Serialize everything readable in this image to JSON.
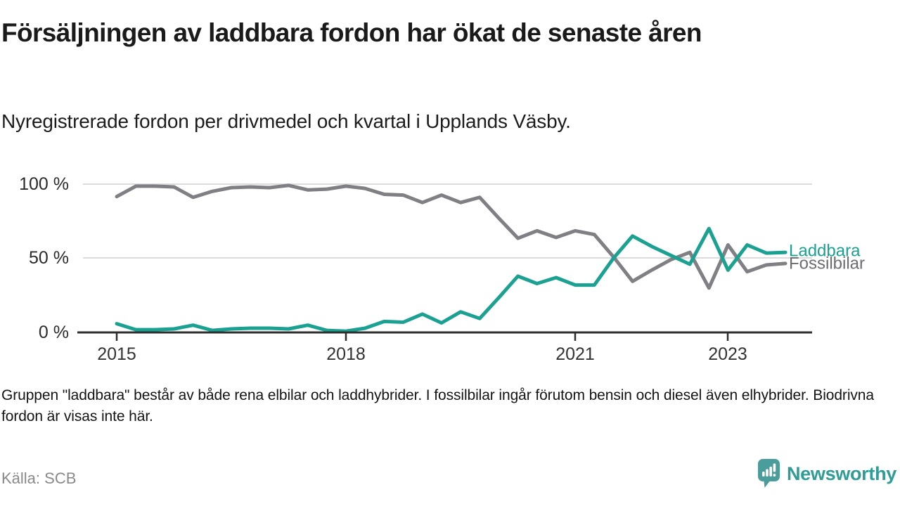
{
  "header": {
    "title": "Försäljningen av laddbara fordon har ökat de senaste åren",
    "subtitle": "Nyregistrerade fordon per drivmedel och kvartal i Upplands Väsby."
  },
  "footer": {
    "footnote": "Gruppen \"laddbara\" består av både rena elbilar och laddhybrider. I fossilbilar ingår förutom bensin och diesel även elhybrider. Biodrivna fordon är visas inte här.",
    "source": "Källa: SCB"
  },
  "branding": {
    "logo_text": "Newsworthy",
    "logo_color": "#2f9c96",
    "logo_bubble_color": "#4a9d9b"
  },
  "chart_data": {
    "type": "line",
    "title": "Försäljningen av laddbara fordon har ökat de senaste åren",
    "subtitle": "Nyregistrerade fordon per drivmedel och kvartal i Upplands Väsby.",
    "unit": "%",
    "ylim": [
      0,
      100
    ],
    "grid": "horizontal",
    "legend_position": "end-of-line",
    "y_ticks": [
      "100 %",
      "50 %",
      "0 %"
    ],
    "x_ticks": [
      "2015",
      "2018",
      "2021",
      "2023"
    ],
    "x": [
      "2015 Q1",
      "2015 Q2",
      "2015 Q3",
      "2015 Q4",
      "2016 Q1",
      "2016 Q2",
      "2016 Q3",
      "2016 Q4",
      "2017 Q1",
      "2017 Q2",
      "2017 Q3",
      "2017 Q4",
      "2018 Q1",
      "2018 Q2",
      "2018 Q3",
      "2018 Q4",
      "2019 Q1",
      "2019 Q2",
      "2019 Q3",
      "2019 Q4",
      "2020 Q1",
      "2020 Q2",
      "2020 Q3",
      "2020 Q4",
      "2021 Q1",
      "2021 Q2",
      "2021 Q3",
      "2021 Q4",
      "2022 Q1",
      "2022 Q2",
      "2022 Q3",
      "2022 Q4",
      "2023 Q1",
      "2023 Q2",
      "2023 Q3",
      "2023 Q4"
    ],
    "series": [
      {
        "name": "Laddbara",
        "color": "#1aa192",
        "label_color": "#1aa192",
        "values": [
          6,
          2,
          2,
          2.5,
          5,
          1.5,
          2.5,
          3,
          3,
          2.5,
          5,
          1.5,
          1,
          3,
          7.5,
          7,
          12.5,
          6.5,
          14,
          9.5,
          23.5,
          38,
          33,
          37,
          32,
          32,
          50,
          65,
          58,
          52,
          46,
          70,
          42,
          59,
          53.5,
          54
        ]
      },
      {
        "name": "Fossilbilar",
        "color": "#7f7f84",
        "label_color": "#6c6c71",
        "values": [
          91.5,
          98.5,
          98.5,
          98,
          91,
          95,
          97.5,
          98,
          97.5,
          99,
          96,
          96.5,
          98.5,
          97,
          93,
          92.5,
          87.5,
          92.5,
          87.5,
          91,
          77,
          63.5,
          68.5,
          64,
          68.5,
          66,
          51,
          34.5,
          42,
          49,
          54,
          30,
          59,
          41,
          45.5,
          46.5
        ]
      }
    ]
  }
}
